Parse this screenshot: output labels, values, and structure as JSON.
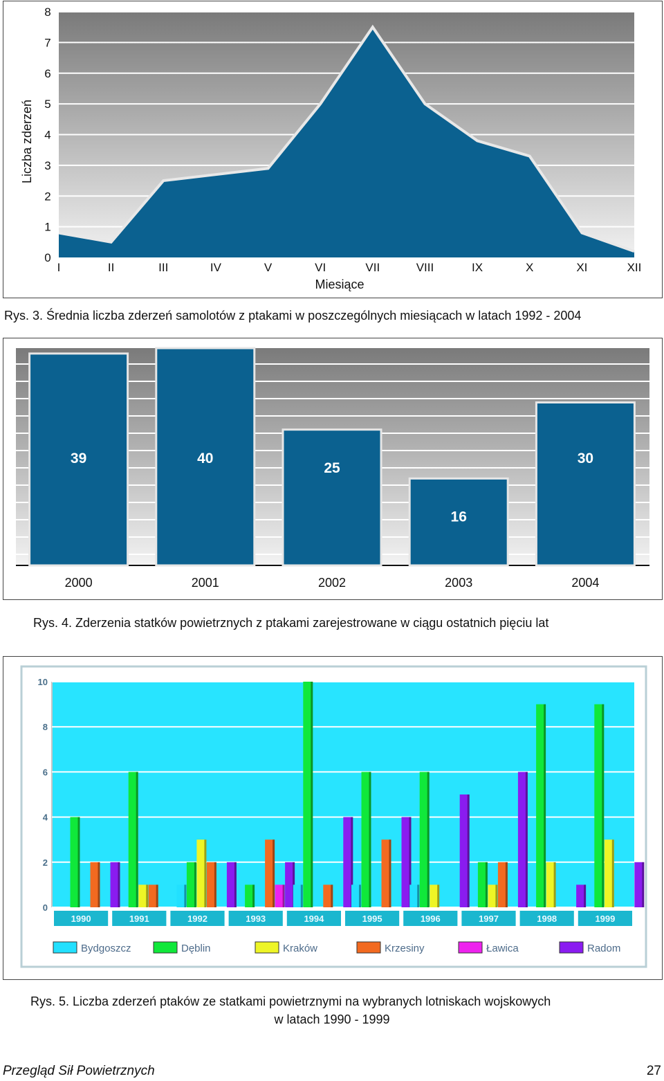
{
  "chart_data": [
    {
      "type": "area",
      "title": "",
      "xlabel": "Miesiące",
      "ylabel": "Liczba zderzeń",
      "ylim": [
        0,
        8
      ],
      "yticks": [
        0,
        1,
        2,
        3,
        4,
        5,
        6,
        7,
        8
      ],
      "categories": [
        "I",
        "II",
        "III",
        "IV",
        "V",
        "VI",
        "VII",
        "VIII",
        "IX",
        "X",
        "XI",
        "XII"
      ],
      "values": [
        0.8,
        0.5,
        2.5,
        2.7,
        2.9,
        5.0,
        7.5,
        5.0,
        3.8,
        3.3,
        0.8,
        0.2
      ],
      "grid": true,
      "colors": {
        "fill": "#0b6190",
        "line": "#e8e8e8"
      }
    },
    {
      "type": "bar",
      "title": "",
      "categories": [
        "2000",
        "2001",
        "2002",
        "2003",
        "2004"
      ],
      "values": [
        39,
        40,
        25,
        16,
        30
      ],
      "labels": [
        "39",
        "40",
        "25",
        "16",
        "30"
      ],
      "ylim": [
        0,
        40
      ],
      "grid": true,
      "colors": {
        "bar": "#0b6190",
        "border": "#e6e6e6"
      }
    },
    {
      "type": "bar",
      "title": "",
      "categories": [
        "1990",
        "1991",
        "1992",
        "1993",
        "1994",
        "1995",
        "1996",
        "1997",
        "1998",
        "1999"
      ],
      "ylim": [
        0,
        10
      ],
      "yticks": [
        "0",
        "2",
        "4",
        "6",
        "8",
        "10"
      ],
      "series": [
        {
          "name": "Bydgoszcz",
          "color": "#22e0ff",
          "values": [
            0,
            0,
            1,
            0,
            1,
            1,
            1,
            0,
            0,
            0
          ]
        },
        {
          "name": "Dęblin",
          "color": "#10e83a",
          "values": [
            4,
            6,
            2,
            1,
            10,
            6,
            6,
            2,
            9,
            9
          ]
        },
        {
          "name": "Kraków",
          "color": "#eef526",
          "values": [
            0,
            1,
            3,
            0,
            0,
            0,
            1,
            1,
            2,
            3
          ]
        },
        {
          "name": "Krzesiny",
          "color": "#f26a20",
          "values": [
            2,
            1,
            2,
            3,
            1,
            3,
            0,
            2,
            0,
            0
          ]
        },
        {
          "name": "Ławica",
          "color": "#ee22ee",
          "values": [
            0,
            0,
            0,
            1,
            0,
            0,
            0,
            0,
            0,
            0
          ]
        },
        {
          "name": "Radom",
          "color": "#8a1cf0",
          "values": [
            2,
            0,
            2,
            2,
            4,
            4,
            5,
            6,
            1,
            2
          ]
        }
      ],
      "highlight_note_color": "#ff1a1a",
      "legend": "bottom",
      "grid": true,
      "colors": {
        "plot_bg": "#28e4ff",
        "year_box": "#1bb7cf",
        "frame": "#b9cfd6"
      }
    }
  ],
  "captions": {
    "fig3": "Rys. 3. Średnia liczba zderzeń samolotów z ptakami w poszczególnych miesiącach w latach 1992 - 2004",
    "fig4": "Rys. 4. Zderzenia statków powietrznych z ptakami zarejestrowane w ciągu ostatnich pięciu lat",
    "fig5_line1": "Rys. 5. Liczba zderzeń ptaków ze statkami powietrznymi na wybranych lotniskach wojskowych",
    "fig5_line2": "w latach 1990 - 1999"
  },
  "footer": {
    "journal": "Przegląd Sił Powietrznych",
    "page": "27"
  }
}
